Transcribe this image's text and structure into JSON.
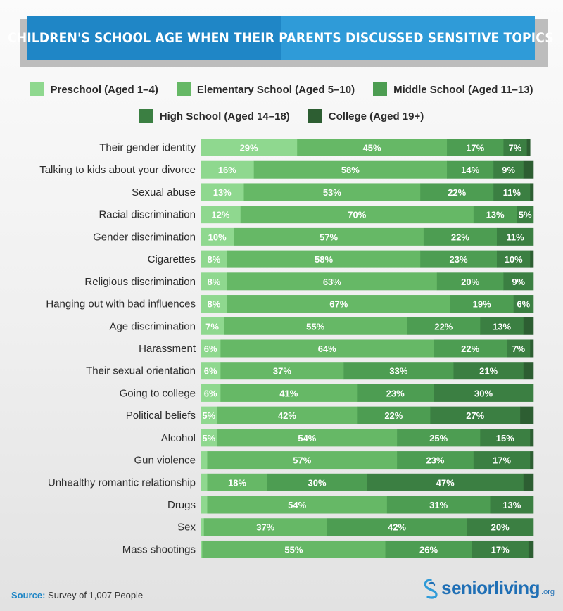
{
  "title": "CHILDREN'S SCHOOL AGE WHEN THEIR PARENTS DISCUSSED SENSITIVE TOPICS",
  "legend_colors": [
    "#8fd88f",
    "#66b866",
    "#4d9d52",
    "#3b7f42",
    "#2d5e32"
  ],
  "chart_data": {
    "type": "bar",
    "orientation": "horizontal",
    "stacked": true,
    "unit": "%",
    "categories": [
      "Their gender identity",
      "Talking to kids about your divorce",
      "Sexual abuse",
      "Racial discrimination",
      "Gender discrimination",
      "Cigarettes",
      "Religious discrimination",
      "Hanging out with bad influences",
      "Age discrimination",
      "Harassment",
      "Their sexual orientation",
      "Going to college",
      "Political beliefs",
      "Alcohol",
      "Gun violence",
      "Unhealthy romantic relationship",
      "Drugs",
      "Sex",
      "Mass shootings"
    ],
    "series": [
      {
        "name": "Preschool (Aged 1–4)",
        "values": [
          29,
          16,
          13,
          12,
          10,
          8,
          8,
          8,
          7,
          6,
          6,
          6,
          5,
          5,
          2,
          2,
          2,
          1,
          0.5
        ]
      },
      {
        "name": "Elementary School (Aged 5–10)",
        "values": [
          45,
          58,
          53,
          70,
          57,
          58,
          63,
          67,
          55,
          64,
          37,
          41,
          42,
          54,
          57,
          18,
          54,
          37,
          55
        ]
      },
      {
        "name": "Middle School (Aged 11–13)",
        "values": [
          17,
          14,
          22,
          13,
          22,
          23,
          20,
          19,
          22,
          22,
          33,
          23,
          22,
          25,
          23,
          30,
          31,
          42,
          26
        ]
      },
      {
        "name": "High School (Aged 14–18)",
        "values": [
          7,
          9,
          11,
          5,
          11,
          10,
          9,
          6,
          13,
          7,
          21,
          30,
          27,
          15,
          17,
          47,
          13,
          20,
          17
        ]
      },
      {
        "name": "College (Aged 19+)",
        "values": [
          1,
          3,
          1,
          0,
          0,
          1,
          0,
          0,
          3,
          1,
          3,
          0,
          4,
          1,
          1,
          3,
          0,
          0,
          1.5
        ]
      }
    ],
    "data_labels": [
      [
        "29%",
        "45%",
        "17%",
        "7%",
        ""
      ],
      [
        "16%",
        "58%",
        "14%",
        "9%",
        ""
      ],
      [
        "13%",
        "53%",
        "22%",
        "11%",
        ""
      ],
      [
        "12%",
        "70%",
        "13%",
        "5%",
        ""
      ],
      [
        "10%",
        "57%",
        "22%",
        "11%",
        ""
      ],
      [
        "8%",
        "58%",
        "23%",
        "10%",
        ""
      ],
      [
        "8%",
        "63%",
        "20%",
        "9%",
        ""
      ],
      [
        "8%",
        "67%",
        "19%",
        "6%",
        ""
      ],
      [
        "7%",
        "55%",
        "22%",
        "13%",
        ""
      ],
      [
        "6%",
        "64%",
        "22%",
        "7%",
        ""
      ],
      [
        "6%",
        "37%",
        "33%",
        "21%",
        ""
      ],
      [
        "6%",
        "41%",
        "23%",
        "30%",
        ""
      ],
      [
        "5%",
        "42%",
        "22%",
        "27%",
        ""
      ],
      [
        "5%",
        "54%",
        "25%",
        "15%",
        ""
      ],
      [
        "",
        "57%",
        "23%",
        "17%",
        ""
      ],
      [
        "",
        "18%",
        "30%",
        "47%",
        ""
      ],
      [
        "",
        "54%",
        "31%",
        "13%",
        ""
      ],
      [
        "",
        "37%",
        "42%",
        "20%",
        ""
      ],
      [
        "",
        "55%",
        "26%",
        "17%",
        ""
      ]
    ],
    "xlim": [
      0,
      100
    ]
  },
  "footer": {
    "source_label": "Source:",
    "source_text": " Survey of 1,007 People",
    "brand_name": "seniorliving",
    "brand_tld": ".org"
  }
}
